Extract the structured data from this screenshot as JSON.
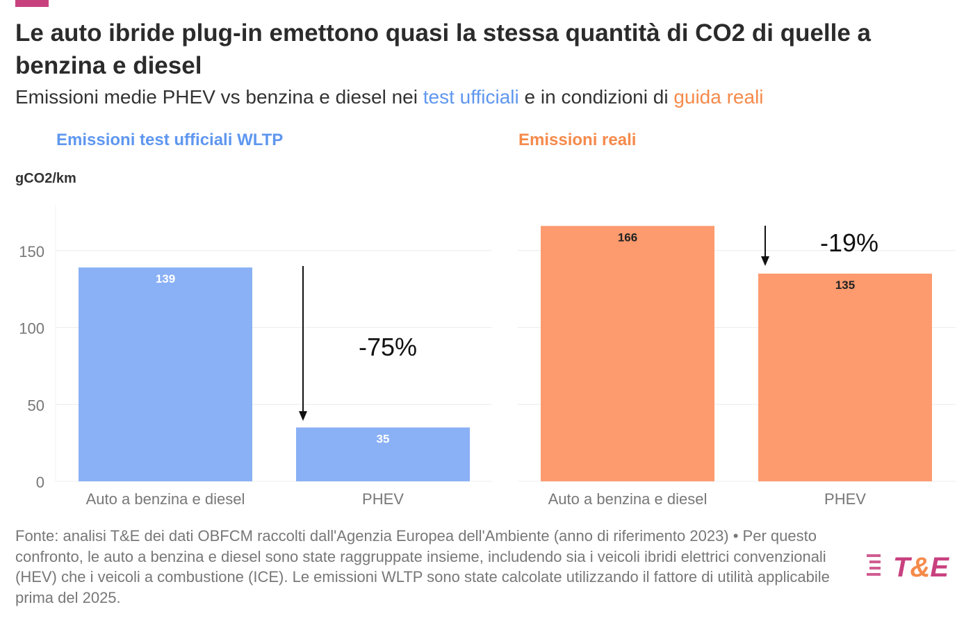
{
  "header": {
    "title": "Le auto ibride plug-in emettono quasi la stessa quantità di CO2 di quelle a benzina e diesel",
    "subtitle_pre": "Emissioni medie PHEV vs benzina e diesel nei ",
    "subtitle_blue": "test ufficiali",
    "subtitle_mid": " e in condizioni di ",
    "subtitle_orange": "guida reali"
  },
  "colors": {
    "blue": "#8ab0f5",
    "orange": "#fd9a6e",
    "brand": "#c8417f",
    "brand_orange": "#f58a4b"
  },
  "chart_data": [
    {
      "type": "bar",
      "title": "Emissioni test ufficiali WLTP",
      "ylabel": "gCO2/km",
      "categories": [
        "Auto a benzina e diesel",
        "PHEV"
      ],
      "values": [
        139,
        35
      ],
      "yticks": [
        0,
        50,
        100,
        150
      ],
      "ylim": [
        0,
        170
      ],
      "grid": true,
      "color": "#8ab0f5",
      "annotation": "-75%"
    },
    {
      "type": "bar",
      "title": "Emissioni reali",
      "categories": [
        "Auto a benzina e diesel",
        "PHEV"
      ],
      "values": [
        166,
        135
      ],
      "ylim": [
        0,
        170
      ],
      "grid": true,
      "color": "#fd9a6e",
      "annotation": "-19%"
    }
  ],
  "footer": {
    "text": "Fonte: analisi T&E dei dati OBFCM raccolti dall'Agenzia Europea dell'Ambiente (anno di riferimento 2023) • Per questo confronto, le auto a benzina e diesel sono state raggruppate insieme, includendo sia i veicoli ibridi elettrici convenzionali (HEV) che i veicoli a combustione (ICE). Le emissioni WLTP sono state calcolate utilizzando il fattore di utilità applicabile prima del 2025."
  },
  "logo": {
    "text": "T&E"
  }
}
